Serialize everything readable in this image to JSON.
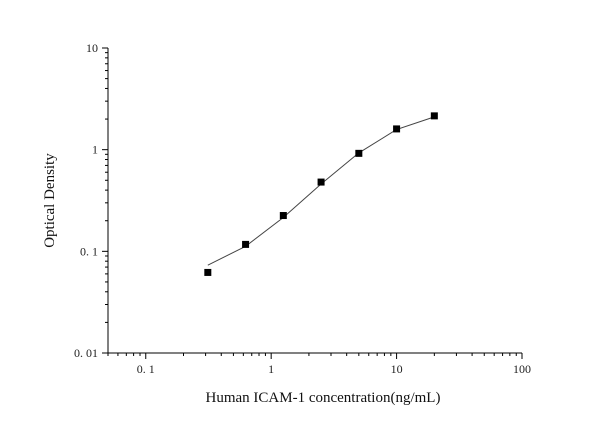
{
  "chart_data": {
    "type": "scatter",
    "title": "",
    "xlabel": "Human ICAM-1 concentration(ng/mL)",
    "ylabel": "Optical Density",
    "x_scale": "log",
    "y_scale": "log",
    "xlim": [
      0.05,
      100
    ],
    "ylim": [
      0.01,
      10
    ],
    "grid": false,
    "legend": "none",
    "x_ticks": [
      {
        "value": 0.1,
        "label": "0. 1"
      },
      {
        "value": 1,
        "label": "1"
      },
      {
        "value": 10,
        "label": "10"
      },
      {
        "value": 100,
        "label": "100"
      }
    ],
    "y_ticks": [
      {
        "value": 0.01,
        "label": "0. 01"
      },
      {
        "value": 0.1,
        "label": "0. 1"
      },
      {
        "value": 1,
        "label": "1"
      },
      {
        "value": 10,
        "label": "10"
      }
    ],
    "series": [
      {
        "x": [
          0.3125,
          0.625,
          1.25,
          2.5,
          5,
          10,
          20
        ],
        "y": [
          0.062,
          0.117,
          0.225,
          0.48,
          0.92,
          1.6,
          2.15
        ],
        "marker": "square",
        "marker_color": "#000000",
        "line_color": "#444444"
      }
    ],
    "fit_curve": {
      "x": [
        0.3125,
        0.625,
        1.25,
        2.5,
        5,
        10,
        20
      ],
      "y": [
        0.073,
        0.112,
        0.215,
        0.46,
        0.93,
        1.58,
        2.1
      ],
      "color": "#444444"
    }
  }
}
